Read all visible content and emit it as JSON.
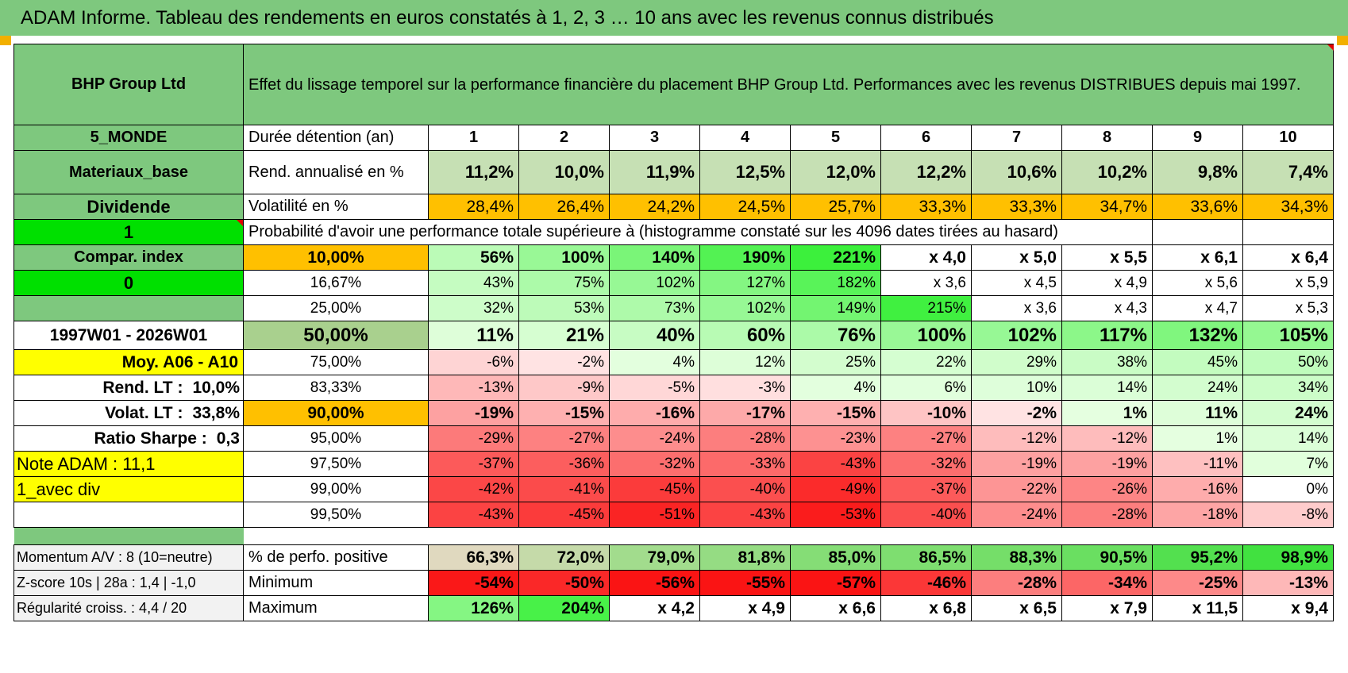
{
  "title": "ADAM Informe. Tableau des rendements en euros constatés à 1, 2, 3 … 10 ans avec les revenus connus distribués",
  "header": {
    "name": "BHP Group Ltd",
    "description": "Effet du lissage temporel sur la performance financière du placement BHP Group Ltd. Performances avec les revenus DISTRIBUES depuis mai 1997."
  },
  "left": {
    "zone": "5_MONDE",
    "sector": "Materiaux_base",
    "type": "Dividende",
    "flag1": "1",
    "compar": "Compar. index",
    "flag0": "0",
    "period": "1997W01 - 2026W01",
    "moy": "Moy. A06 - A10",
    "rend_label": "Rend. LT :",
    "rend_value": "10,0%",
    "volat_label": "Volat. LT :",
    "volat_value": "33,8%",
    "sharpe_label": "Ratio Sharpe :",
    "sharpe_value": "0,3",
    "note": "Note ADAM : 11,1",
    "variant": "1_avec div"
  },
  "duration": {
    "label": "Durée détention (an)",
    "years": [
      "1",
      "2",
      "3",
      "4",
      "5",
      "6",
      "7",
      "8",
      "9",
      "10"
    ]
  },
  "rend": {
    "label": "Rend. annualisé en %",
    "values": [
      "11,2%",
      "10,0%",
      "11,9%",
      "12,5%",
      "12,0%",
      "12,2%",
      "10,6%",
      "10,2%",
      "9,8%",
      "7,4%"
    ]
  },
  "volat": {
    "label": "Volatilité en %",
    "values": [
      "28,4%",
      "26,4%",
      "24,2%",
      "24,5%",
      "25,7%",
      "33,3%",
      "33,3%",
      "34,7%",
      "33,6%",
      "34,3%"
    ]
  },
  "prob_title": "Probabilité d'avoir une performance totale supérieure à (histogramme constaté sur les 4096 dates tirées au hasard)",
  "prob_rows": [
    {
      "p": "10,00%",
      "v": [
        "56%",
        "100%",
        "140%",
        "190%",
        "221%",
        "x 4,0",
        "x 5,0",
        "x 5,5",
        "x 6,1",
        "x 6,4"
      ]
    },
    {
      "p": "16,67%",
      "v": [
        "43%",
        "75%",
        "102%",
        "127%",
        "182%",
        "x 3,6",
        "x 4,5",
        "x 4,9",
        "x 5,6",
        "x 5,9"
      ]
    },
    {
      "p": "25,00%",
      "v": [
        "32%",
        "53%",
        "73%",
        "102%",
        "149%",
        "215%",
        "x 3,6",
        "x 4,3",
        "x 4,7",
        "x 5,3"
      ]
    },
    {
      "p": "50,00%",
      "v": [
        "11%",
        "21%",
        "40%",
        "60%",
        "76%",
        "100%",
        "102%",
        "117%",
        "132%",
        "105%"
      ]
    },
    {
      "p": "75,00%",
      "v": [
        "-6%",
        "-2%",
        "4%",
        "12%",
        "25%",
        "22%",
        "29%",
        "38%",
        "45%",
        "50%"
      ]
    },
    {
      "p": "83,33%",
      "v": [
        "-13%",
        "-9%",
        "-5%",
        "-3%",
        "4%",
        "6%",
        "10%",
        "14%",
        "24%",
        "34%"
      ]
    },
    {
      "p": "90,00%",
      "v": [
        "-19%",
        "-15%",
        "-16%",
        "-17%",
        "-15%",
        "-10%",
        "-2%",
        "1%",
        "11%",
        "24%"
      ]
    },
    {
      "p": "95,00%",
      "v": [
        "-29%",
        "-27%",
        "-24%",
        "-28%",
        "-23%",
        "-27%",
        "-12%",
        "-12%",
        "1%",
        "14%"
      ]
    },
    {
      "p": "97,50%",
      "v": [
        "-37%",
        "-36%",
        "-32%",
        "-33%",
        "-43%",
        "-32%",
        "-19%",
        "-19%",
        "-11%",
        "7%"
      ]
    },
    {
      "p": "99,00%",
      "v": [
        "-42%",
        "-41%",
        "-45%",
        "-40%",
        "-49%",
        "-37%",
        "-22%",
        "-26%",
        "-16%",
        "0%"
      ]
    },
    {
      "p": "99,50%",
      "v": [
        "-43%",
        "-45%",
        "-51%",
        "-43%",
        "-53%",
        "-40%",
        "-24%",
        "-28%",
        "-18%",
        "-8%"
      ]
    }
  ],
  "bottom": [
    {
      "left": "Momentum A/V : 8 (10=neutre)",
      "label": "% de perfo. positive",
      "v": [
        "66,3%",
        "72,0%",
        "79,0%",
        "81,8%",
        "85,0%",
        "86,5%",
        "88,3%",
        "90,5%",
        "95,2%",
        "98,9%"
      ]
    },
    {
      "left": "Z-score 10s | 28a : 1,4 | -1,0",
      "label": "Minimum",
      "v": [
        "-54%",
        "-50%",
        "-56%",
        "-55%",
        "-57%",
        "-46%",
        "-28%",
        "-34%",
        "-25%",
        "-13%"
      ]
    },
    {
      "left": "Régularité croiss. : 4,4 / 20",
      "label": "Maximum",
      "v": [
        "126%",
        "204%",
        "x 4,2",
        "x 4,9",
        "x 6,6",
        "x 6,8",
        "x 6,5",
        "x 7,9",
        "x 11,5",
        "x 9,4"
      ]
    }
  ]
}
